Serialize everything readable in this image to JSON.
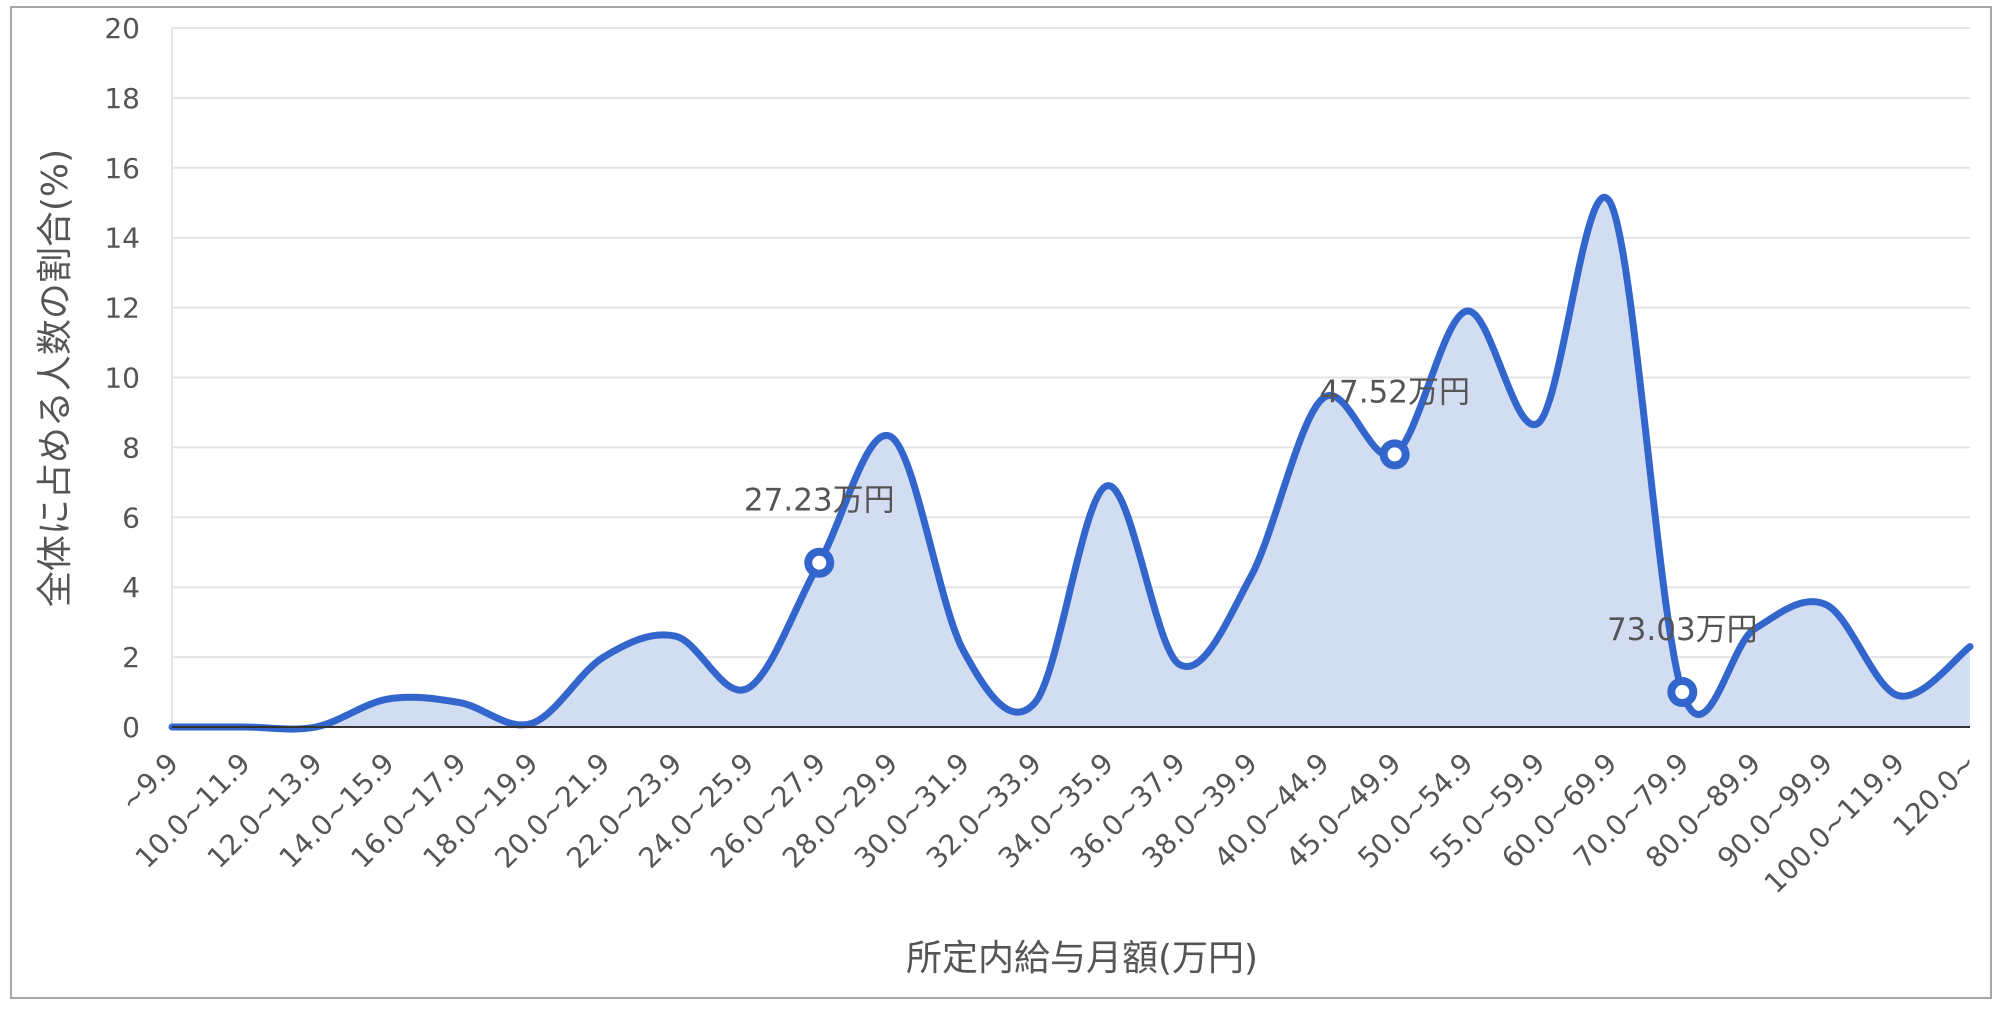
{
  "chart_data": {
    "type": "area",
    "title": "",
    "xlabel": "所定内給与月額(万円)",
    "ylabel": "全体に占める人数の割合(%)",
    "ylim": [
      0,
      20
    ],
    "yticks": [
      "0",
      "2",
      "4",
      "6",
      "8",
      "10",
      "12",
      "14",
      "16",
      "18",
      "20"
    ],
    "grid": true,
    "categories": [
      "~9.9",
      "10.0~11.9",
      "12.0~13.9",
      "14.0~15.9",
      "16.0~17.9",
      "18.0~19.9",
      "20.0~21.9",
      "22.0~23.9",
      "24.0~25.9",
      "26.0~27.9",
      "28.0~29.9",
      "30.0~31.9",
      "32.0~33.9",
      "34.0~35.9",
      "36.0~37.9",
      "38.0~39.9",
      "40.0~44.9",
      "45.0~49.9",
      "50.0~54.9",
      "55.0~59.9",
      "60.0~69.9",
      "70.0~79.9",
      "80.0~89.9",
      "90.0~99.9",
      "100.0~119.9",
      "120.0~"
    ],
    "values": [
      0,
      0,
      0,
      0.8,
      0.7,
      0.1,
      2.0,
      2.6,
      1.1,
      4.7,
      8.3,
      2.2,
      0.7,
      6.9,
      1.8,
      4.3,
      9.4,
      7.8,
      11.9,
      8.7,
      15.0,
      1.0,
      2.8,
      3.5,
      0.9,
      2.3
    ],
    "line_color": "#3366cc",
    "fill_color": "#d3ddf2",
    "annotations": [
      {
        "index": 9,
        "label": "27.23万円"
      },
      {
        "index": 17,
        "label": "47.52万円"
      },
      {
        "index": 21,
        "label": "73.03万円"
      }
    ]
  }
}
